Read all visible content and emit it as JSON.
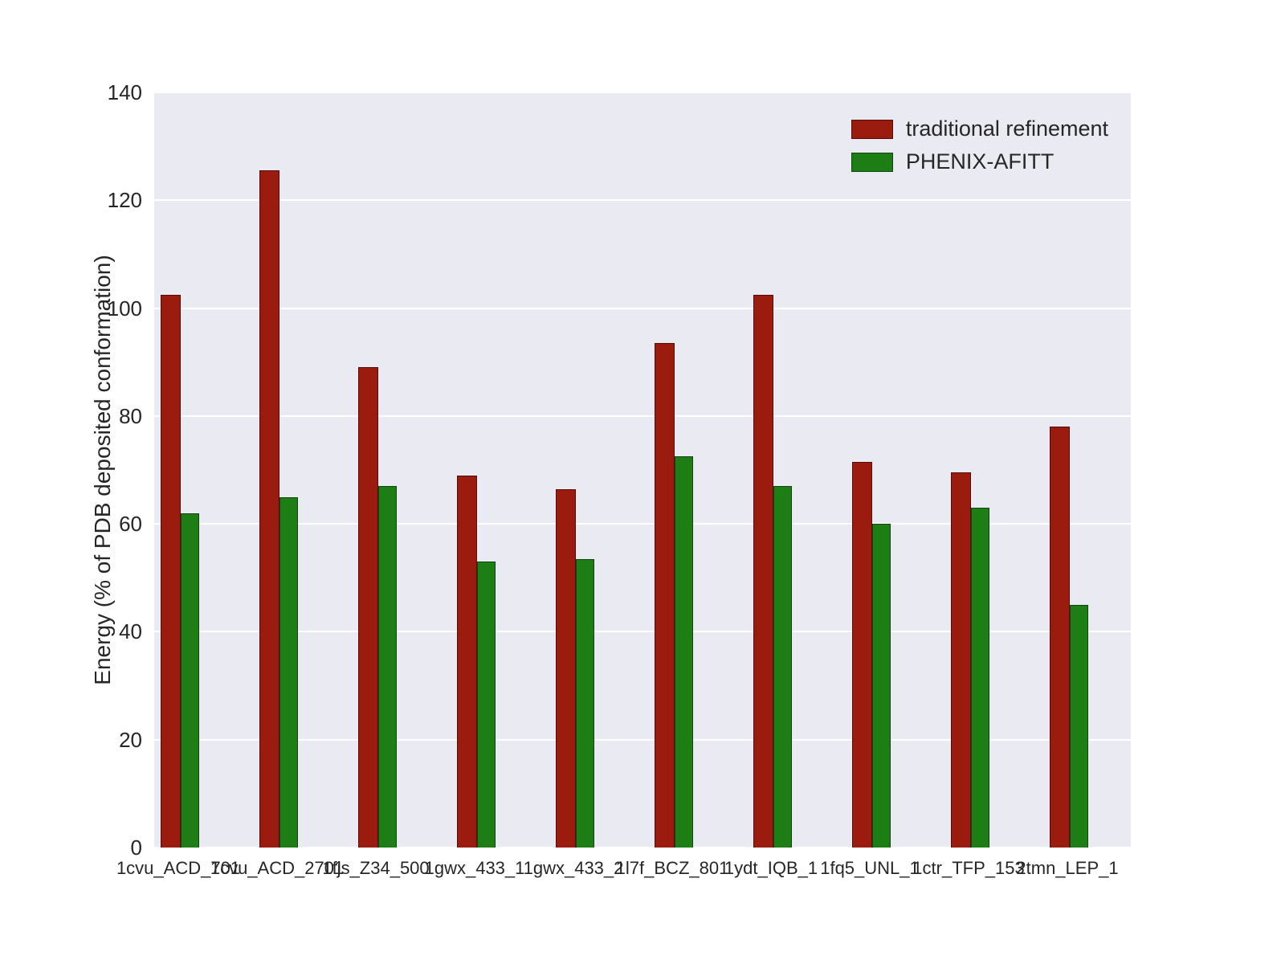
{
  "chart_data": {
    "type": "bar",
    "title": "",
    "xlabel": "",
    "ylabel": "Energy (% of PDB deposited conformation)",
    "ylim": [
      0,
      140
    ],
    "yticks": [
      0,
      20,
      40,
      60,
      80,
      100,
      120,
      140
    ],
    "grid": true,
    "legend_position": "upper right",
    "plot_background": "#eaeaf2",
    "gridline_color": "#ffffff",
    "categories": [
      "1cvu_ACD_701",
      "1cvu_ACD_2701",
      "1fjs_Z34_500",
      "1gwx_433_1",
      "1gwx_433_2",
      "1l7f_BCZ_801",
      "1ydt_IQB_1",
      "1fq5_UNL_1",
      "1ctr_TFP_153",
      "2tmn_LEP_1"
    ],
    "series": [
      {
        "name": "traditional refinement",
        "color": "#9b1b0e",
        "values": [
          102.5,
          125.5,
          89,
          69,
          66.5,
          93.5,
          102.5,
          71.5,
          69.5,
          78
        ]
      },
      {
        "name": "PHENIX-AFITT",
        "color": "#1e7e16",
        "values": [
          62,
          65,
          67,
          53,
          53.5,
          72.5,
          67,
          60,
          63,
          45
        ]
      }
    ]
  }
}
